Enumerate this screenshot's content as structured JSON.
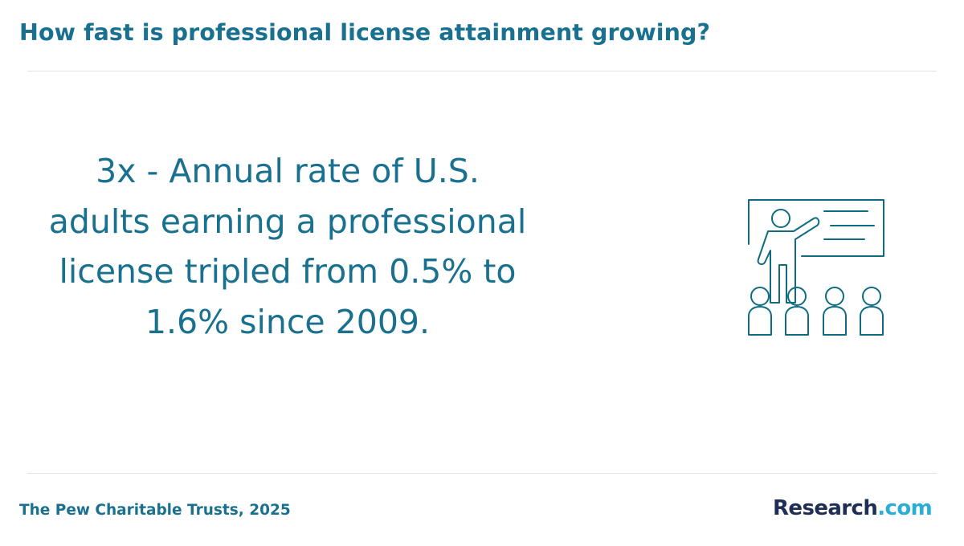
{
  "header": {
    "title": "How fast is professional license attainment growing?"
  },
  "stat": {
    "text": "3x - Annual rate of U.S. adults earning a professional license tripled from 0.5% to 1.6% since 2009."
  },
  "illustration": {
    "icon": "teacher-presenting-icon",
    "stroke_color": "#0f6b82"
  },
  "footer": {
    "source": "The Pew Charitable Trusts, 2025",
    "brand_word": "Research",
    "brand_tld": ".com"
  },
  "colors": {
    "accent": "#19718f",
    "brand_dark": "#1e2e55",
    "brand_light": "#2aaed6",
    "divider": "#e3e3e3"
  }
}
